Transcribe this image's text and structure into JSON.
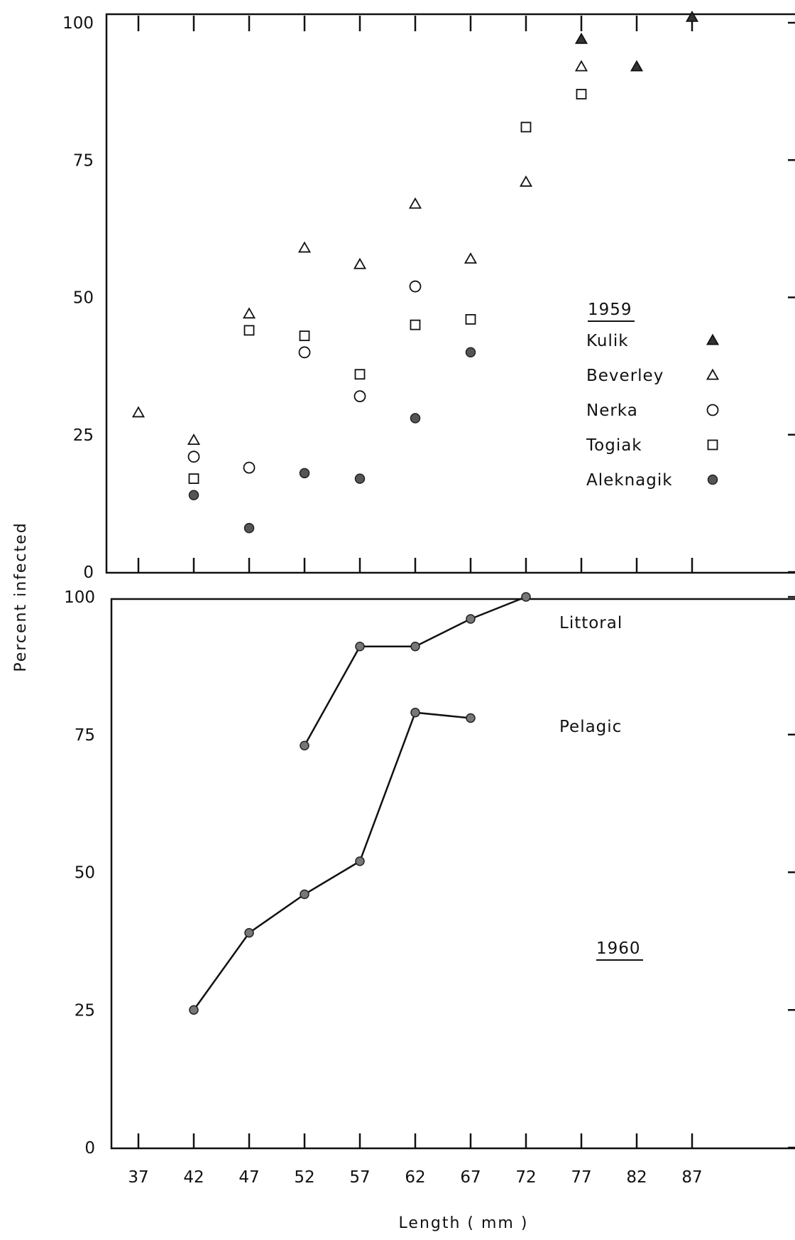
{
  "chart_data": [
    {
      "type": "scatter",
      "panel": "top",
      "title": "1959",
      "ylabel": "Percent infected",
      "xlabel": "Length ( mm )",
      "ylim": [
        0,
        100
      ],
      "yticks": [
        "0",
        "25",
        "50",
        "75",
        "100"
      ],
      "x_ticks": [
        37,
        42,
        47,
        52,
        57,
        62,
        67,
        72,
        77,
        82,
        87
      ],
      "legend_position": "right",
      "series": [
        {
          "name": "Kulik",
          "marker": "filled-triangle",
          "points": [
            [
              77,
              97
            ],
            [
              82,
              92
            ],
            [
              87,
              101
            ]
          ]
        },
        {
          "name": "Beverley",
          "marker": "open-triangle",
          "points": [
            [
              37,
              29
            ],
            [
              42,
              24
            ],
            [
              47,
              47
            ],
            [
              52,
              59
            ],
            [
              57,
              56
            ],
            [
              62,
              67
            ],
            [
              67,
              57
            ],
            [
              72,
              71
            ],
            [
              77,
              92
            ]
          ]
        },
        {
          "name": "Nerka",
          "marker": "open-circle",
          "points": [
            [
              42,
              21
            ],
            [
              47,
              19
            ],
            [
              52,
              40
            ],
            [
              57,
              32
            ],
            [
              62,
              52
            ]
          ]
        },
        {
          "name": "Togiak",
          "marker": "open-square",
          "points": [
            [
              42,
              17
            ],
            [
              47,
              44
            ],
            [
              52,
              43
            ],
            [
              57,
              36
            ],
            [
              62,
              45
            ],
            [
              67,
              46
            ],
            [
              72,
              81
            ],
            [
              77,
              87
            ]
          ]
        },
        {
          "name": "Aleknagik",
          "marker": "filled-circle",
          "points": [
            [
              42,
              14
            ],
            [
              47,
              8
            ],
            [
              52,
              18
            ],
            [
              57,
              17
            ],
            [
              62,
              28
            ],
            [
              67,
              40
            ]
          ]
        }
      ]
    },
    {
      "type": "line",
      "panel": "bottom",
      "title": "1960",
      "ylim": [
        0,
        100
      ],
      "yticks": [
        "0",
        "25",
        "50",
        "75",
        "100"
      ],
      "x_ticks": [
        37,
        42,
        47,
        52,
        57,
        62,
        67,
        72,
        77,
        82,
        87
      ],
      "series": [
        {
          "name": "Littoral",
          "points": [
            [
              52,
              73
            ],
            [
              57,
              91
            ],
            [
              62,
              91
            ],
            [
              67,
              96
            ],
            [
              72,
              100
            ]
          ]
        },
        {
          "name": "Pelagic",
          "points": [
            [
              42,
              25
            ],
            [
              47,
              39
            ],
            [
              52,
              46
            ],
            [
              57,
              52
            ],
            [
              62,
              79
            ],
            [
              67,
              78
            ]
          ]
        }
      ]
    }
  ]
}
